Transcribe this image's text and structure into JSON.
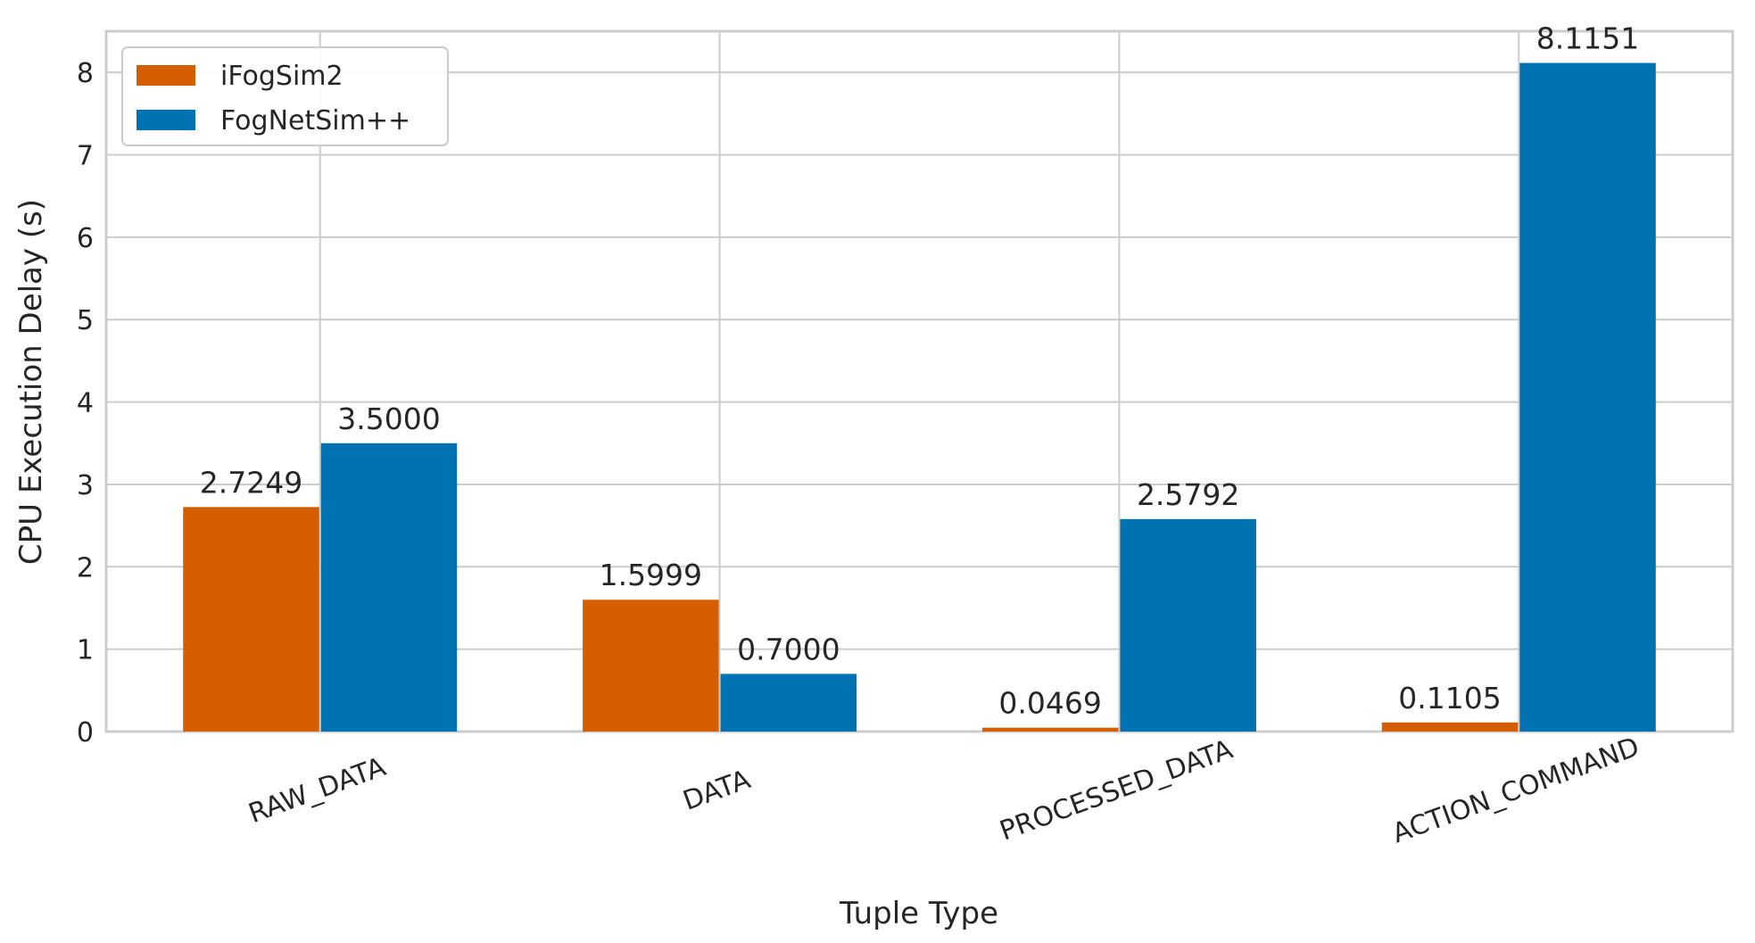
{
  "chart_data": {
    "type": "bar",
    "x_label": "Tuple Type",
    "y_label": "CPU Execution Delay (s)",
    "categories": [
      "RAW_DATA",
      "DATA",
      "PROCESSED_DATA",
      "ACTION_COMMAND"
    ],
    "series": [
      {
        "name": "iFogSim2",
        "color": "#d55e00",
        "values": [
          2.7249,
          1.5999,
          0.0469,
          0.1105
        ],
        "value_labels": [
          "2.7249",
          "1.5999",
          "0.0469",
          "0.1105"
        ]
      },
      {
        "name": "FogNetSim++",
        "color": "#0072b2",
        "values": [
          3.5,
          0.7,
          2.5792,
          8.1151
        ],
        "value_labels": [
          "3.5000",
          "0.7000",
          "2.5792",
          "8.1151"
        ]
      }
    ],
    "ylim": [
      0,
      8.5
    ],
    "yticks": [
      0,
      1,
      2,
      3,
      4,
      5,
      6,
      7,
      8
    ],
    "grid": true,
    "legend": "upper left"
  }
}
